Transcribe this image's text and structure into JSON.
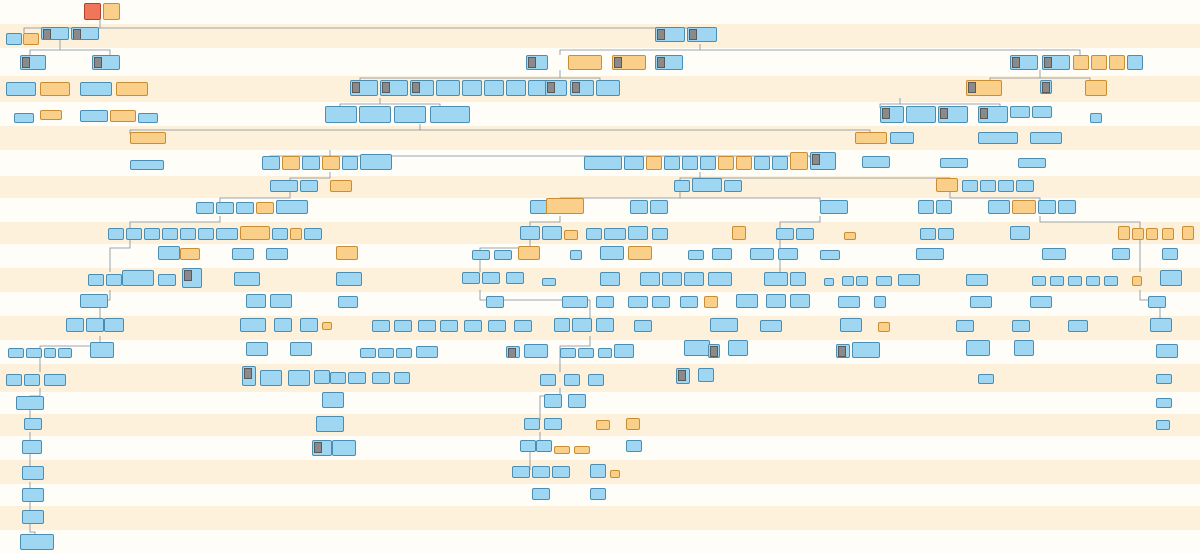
{
  "colors": {
    "band_even": "#fdf1dc",
    "band_odd": "#fffdf8",
    "male_card": "#9fd7f2",
    "female_card": "#f9cf8a",
    "root_card": "#f0765a",
    "link_line": "#7d8b96"
  },
  "legend_note": "",
  "people": []
}
